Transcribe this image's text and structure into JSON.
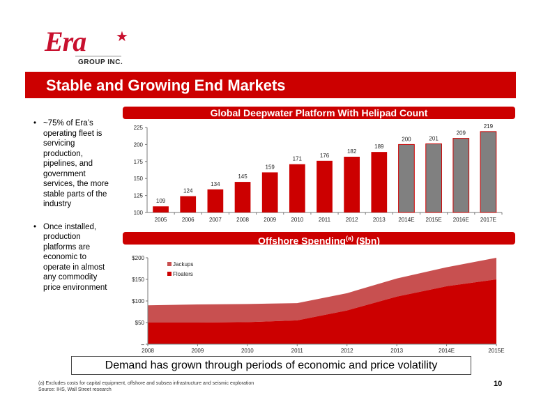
{
  "logo": {
    "word": "Era",
    "subtitle": "GROUP INC."
  },
  "title": "Stable and Growing End Markets",
  "bullets": [
    "~75% of Era’s operating fleet is servicing production, pipelines, and government services, the more stable parts of the industry",
    "Once installed, production platforms are economic to operate in almost any commodity price environment"
  ],
  "colors": {
    "brand": "#cc0000",
    "actual_bar": "#cc0000",
    "estimate_bar": "#808080",
    "floaters": "#cc0000",
    "jackups": "#c85050"
  },
  "chart_data": [
    {
      "type": "bar",
      "title": "Global Deepwater Platform With Helipad Count",
      "categories": [
        "2005",
        "2006",
        "2007",
        "2008",
        "2009",
        "2010",
        "2011",
        "2012",
        "2013",
        "2014E",
        "2015E",
        "2016E",
        "2017E"
      ],
      "values": [
        109,
        124,
        134,
        145,
        159,
        171,
        176,
        182,
        189,
        200,
        201,
        209,
        219
      ],
      "estimate_from_index": 9,
      "ylim": [
        100,
        225
      ],
      "yticks": [
        "100",
        "125",
        "150",
        "175",
        "200",
        "225"
      ],
      "xlabel": "",
      "ylabel": ""
    },
    {
      "type": "area",
      "title_main": "Offshore Spending",
      "title_sup": "(a)",
      "title_unit": "($bn)",
      "x": [
        "2008",
        "2009",
        "2010",
        "2011",
        "2012",
        "2013",
        "2014E",
        "2015E"
      ],
      "series": [
        {
          "name": "Floaters",
          "values": [
            50,
            50,
            51,
            55,
            78,
            110,
            134,
            150
          ]
        },
        {
          "name": "Jackups",
          "values": [
            40,
            42,
            42,
            40,
            40,
            42,
            44,
            50
          ]
        }
      ],
      "stacked": true,
      "ylim": [
        0,
        200
      ],
      "yticks": [
        "–",
        "$50",
        "$100",
        "$150",
        "$200"
      ],
      "legend": "top-left"
    }
  ],
  "callout": "Demand has grown through periods of economic and price volatility",
  "footnotes": [
    "(a)     Excludes costs for capital equipment, offshore and subsea infrastructure and seismic exploration",
    "Source:  IHS, Wall Street research"
  ],
  "page_number": "10"
}
